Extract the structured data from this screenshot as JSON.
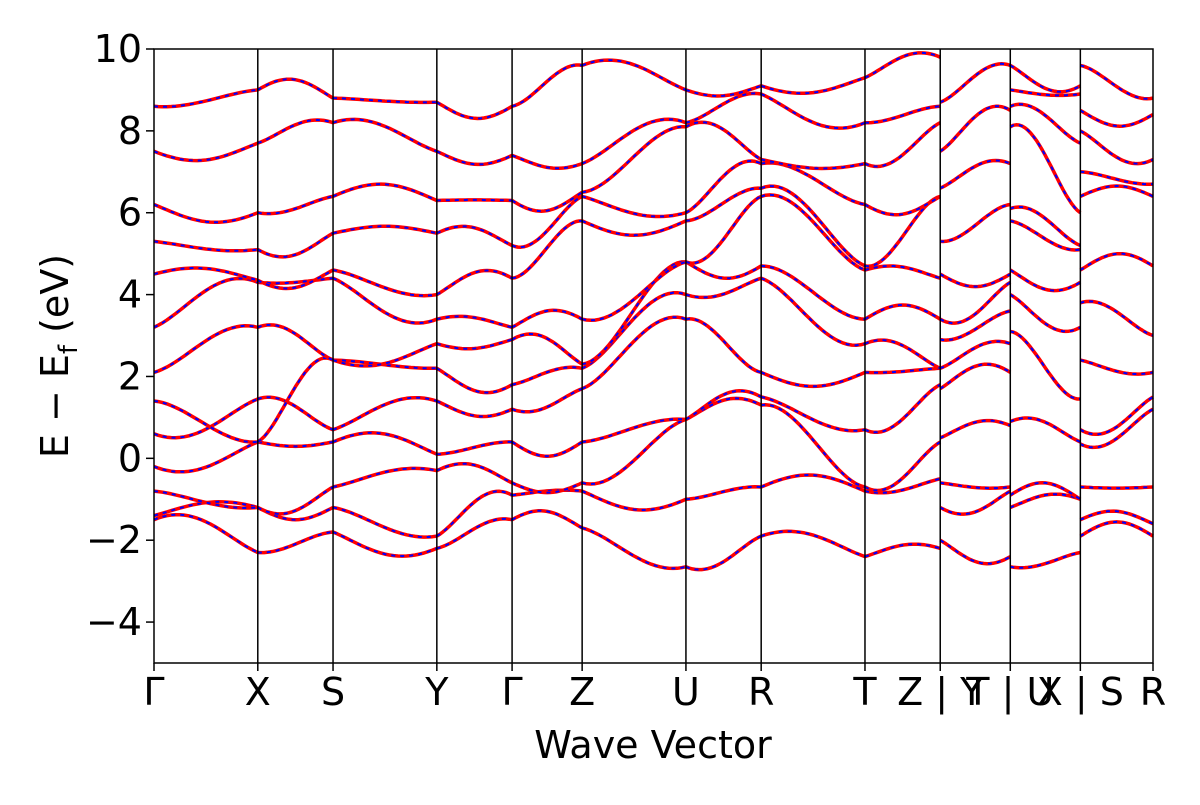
{
  "chart_data": {
    "type": "line",
    "title": "",
    "xlabel": "Wave Vector",
    "ylabel_main": "E − E",
    "ylabel_sub": "f",
    "ylabel_unit": " (eV)",
    "ylim": [
      -5,
      10
    ],
    "yticks": [
      -4,
      -2,
      0,
      2,
      4,
      6,
      8,
      10
    ],
    "ytick_labels": [
      "−4",
      "−2",
      "0",
      "2",
      "4",
      "6",
      "8",
      "10"
    ],
    "grid": false,
    "legend": "none",
    "series_colors": {
      "dashed_overlay": "#0000ff",
      "solid_under": "#ff0000"
    },
    "kpoints": [
      {
        "label": "Γ",
        "x": 0.0
      },
      {
        "label": "X",
        "x": 0.4
      },
      {
        "label": "S",
        "x": 0.69
      },
      {
        "label": "Y",
        "x": 1.09
      },
      {
        "label": "Γ",
        "x": 1.38
      },
      {
        "label": "Z",
        "x": 1.65
      },
      {
        "label": "U",
        "x": 2.05
      },
      {
        "label": "R",
        "x": 2.34
      },
      {
        "label": "T",
        "x": 2.74
      },
      {
        "label": "Z | Y",
        "x": 3.03
      },
      {
        "label": "T | U",
        "x": 3.3
      },
      {
        "label": "X | S",
        "x": 3.57
      },
      {
        "label": "R",
        "x": 3.85
      }
    ],
    "segments": [
      {
        "x0": 0.0,
        "x1": 0.4,
        "start": [
          -1.5,
          -1.4,
          -0.8,
          -0.2,
          0.6,
          1.4,
          2.1,
          3.2,
          4.5,
          5.3,
          6.2,
          7.5,
          8.6
        ],
        "end": [
          -2.3,
          -1.2,
          -1.2,
          0.4,
          1.45,
          0.4,
          3.2,
          4.3,
          4.35,
          5.1,
          6.0,
          7.7,
          9.0
        ]
      },
      {
        "x0": 0.4,
        "x1": 0.69,
        "start": [
          -2.3,
          -1.2,
          -1.2,
          0.4,
          1.45,
          0.4,
          3.2,
          4.3,
          4.35,
          5.1,
          6.0,
          7.7,
          9.0
        ],
        "end": [
          -1.8,
          -1.2,
          -0.7,
          0.4,
          0.7,
          2.4,
          2.4,
          4.4,
          4.6,
          5.5,
          6.4,
          8.2,
          8.8
        ]
      },
      {
        "x0": 0.69,
        "x1": 1.09,
        "start": [
          -1.8,
          -1.2,
          -0.7,
          0.4,
          0.7,
          2.4,
          2.4,
          4.4,
          4.6,
          5.5,
          6.4,
          8.2,
          8.8
        ],
        "end": [
          -2.2,
          -1.9,
          -0.3,
          0.1,
          1.4,
          2.2,
          2.8,
          3.4,
          4.0,
          5.5,
          6.3,
          7.5,
          8.7
        ]
      },
      {
        "x0": 1.09,
        "x1": 1.38,
        "start": [
          -2.2,
          -1.9,
          -0.3,
          0.1,
          1.4,
          2.2,
          2.8,
          3.4,
          4.0,
          5.5,
          6.3,
          7.5,
          8.7
        ],
        "end": [
          -1.5,
          -0.9,
          -0.6,
          0.4,
          1.2,
          1.8,
          2.9,
          3.2,
          4.4,
          5.2,
          6.3,
          7.4,
          8.6
        ]
      },
      {
        "x0": 1.38,
        "x1": 1.65,
        "start": [
          -1.5,
          -0.9,
          -0.6,
          0.4,
          1.2,
          1.8,
          2.9,
          3.2,
          4.4,
          5.2,
          6.3,
          7.4,
          8.6
        ],
        "end": [
          -1.7,
          -0.8,
          -0.6,
          0.4,
          1.7,
          2.2,
          2.3,
          3.4,
          5.8,
          6.4,
          6.5,
          7.2,
          9.6
        ]
      },
      {
        "x0": 1.65,
        "x1": 2.05,
        "start": [
          -1.7,
          -0.8,
          -0.6,
          0.4,
          1.7,
          2.2,
          2.3,
          3.4,
          5.8,
          6.4,
          6.5,
          7.2,
          9.6
        ],
        "end": [
          -2.65,
          -1.0,
          0.95,
          0.95,
          3.4,
          4.0,
          4.8,
          4.8,
          5.8,
          6.0,
          8.1,
          8.2,
          9.0
        ]
      },
      {
        "x0": 2.05,
        "x1": 2.34,
        "start": [
          -2.65,
          -1.0,
          0.95,
          0.95,
          3.4,
          4.0,
          4.8,
          4.8,
          5.8,
          6.0,
          8.1,
          8.2,
          9.0
        ],
        "end": [
          -1.9,
          -0.7,
          1.3,
          1.5,
          2.1,
          4.4,
          4.7,
          6.4,
          6.6,
          7.2,
          7.3,
          8.9,
          9.1
        ]
      },
      {
        "x0": 2.34,
        "x1": 2.74,
        "start": [
          -1.9,
          -0.7,
          1.3,
          1.5,
          2.1,
          4.4,
          4.7,
          6.4,
          6.6,
          7.2,
          7.3,
          8.9,
          9.1
        ],
        "end": [
          -2.4,
          -0.8,
          -0.7,
          0.7,
          2.1,
          2.8,
          3.4,
          4.6,
          4.7,
          6.2,
          7.2,
          8.2,
          9.3
        ]
      },
      {
        "x0": 2.74,
        "x1": 3.03,
        "start": [
          -2.4,
          -0.8,
          -0.7,
          0.7,
          2.1,
          2.8,
          3.4,
          4.6,
          4.7,
          6.2,
          7.2,
          8.2,
          9.3
        ],
        "end": [
          -2.2,
          -0.5,
          0.4,
          1.8,
          2.2,
          2.2,
          3.4,
          4.4,
          6.4,
          6.4,
          8.2,
          8.6,
          9.8
        ]
      },
      {
        "x0": 3.03,
        "x1": 3.3,
        "start": [
          -2.0,
          -1.2,
          -0.6,
          0.5,
          1.7,
          2.2,
          2.9,
          3.4,
          4.5,
          5.3,
          6.6,
          7.5,
          8.7
        ],
        "end": [
          -2.4,
          -0.8,
          -0.7,
          0.8,
          2.1,
          2.8,
          3.6,
          4.3,
          4.5,
          6.2,
          7.2,
          8.5,
          9.6
        ]
      },
      {
        "x0": 3.3,
        "x1": 3.57,
        "start": [
          -2.65,
          -1.2,
          -0.9,
          0.9,
          3.1,
          4.0,
          4.6,
          5.8,
          6.1,
          8.1,
          8.6,
          9.0,
          9.6
        ],
        "end": [
          -2.3,
          -1.0,
          -1.0,
          0.4,
          1.45,
          3.2,
          4.3,
          5.1,
          5.2,
          6.0,
          7.7,
          8.9,
          9.1
        ]
      },
      {
        "x0": 3.57,
        "x1": 3.85,
        "start": [
          -1.9,
          -1.5,
          -0.7,
          0.35,
          0.7,
          2.4,
          3.8,
          4.6,
          6.4,
          7.0,
          8.0,
          8.5,
          9.6
        ],
        "end": [
          -1.9,
          -1.6,
          -0.7,
          1.2,
          1.5,
          2.1,
          3.0,
          4.7,
          6.4,
          6.7,
          7.3,
          8.4,
          8.8
        ]
      }
    ]
  }
}
